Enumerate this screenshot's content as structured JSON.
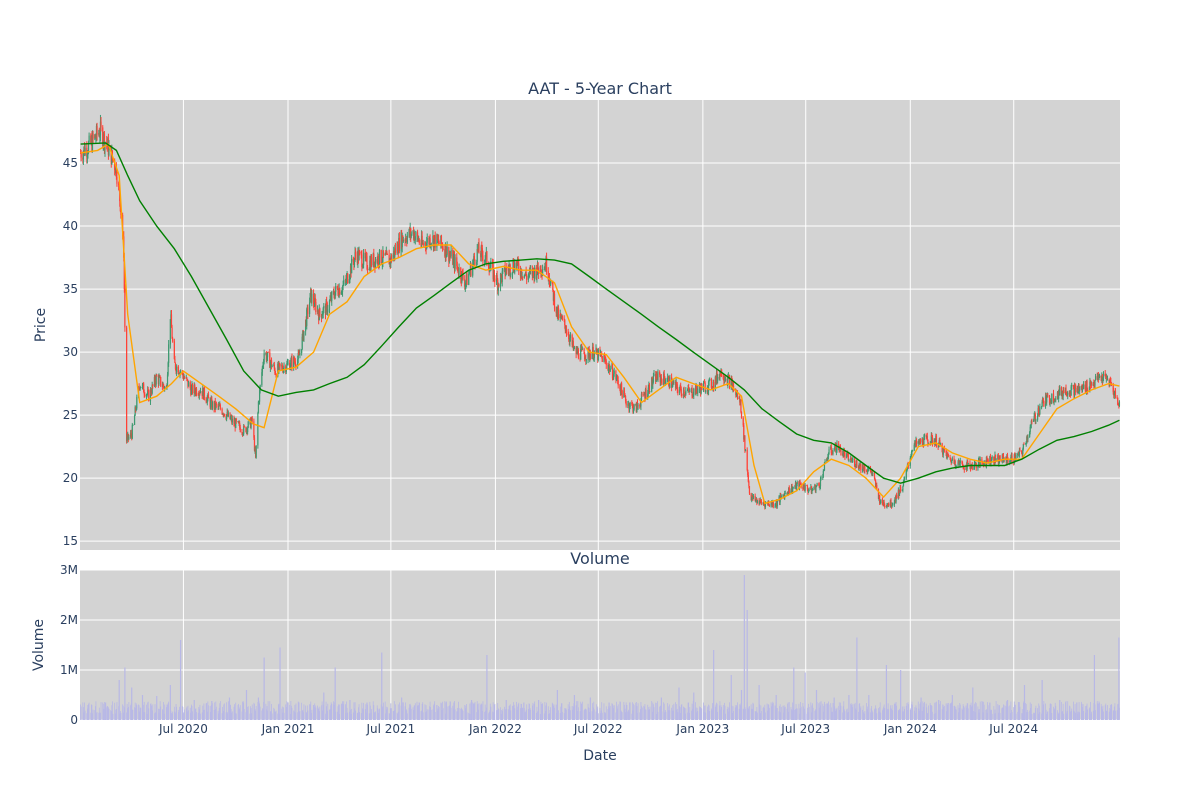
{
  "chart_data": [
    {
      "type": "candlestick",
      "title": "AAT - 5-Year Chart",
      "xlabel": "",
      "ylabel": "Price",
      "ylim": [
        14.3,
        50.0
      ],
      "y_ticks": [
        15,
        20,
        25,
        30,
        35,
        40,
        45
      ],
      "x_range": [
        "2020-01-01",
        "2025-01-04"
      ],
      "grid": true,
      "colors": {
        "plot_bg": "#d3d3d3",
        "grid": "#ffffff",
        "increasing": "#3d9970",
        "decreasing": "#ff4136",
        "ma_short": "#ffa500",
        "ma_long": "#008000"
      },
      "series": [
        {
          "kind": "close",
          "x": [
            "2020-01-02",
            "2020-01-20",
            "2020-02-05",
            "2020-02-20",
            "2020-03-05",
            "2020-03-12",
            "2020-03-18",
            "2020-03-23",
            "2020-04-01",
            "2020-04-15",
            "2020-05-01",
            "2020-05-15",
            "2020-06-01",
            "2020-06-08",
            "2020-06-15",
            "2020-06-26",
            "2020-07-15",
            "2020-08-01",
            "2020-08-20",
            "2020-09-05",
            "2020-09-25",
            "2020-10-15",
            "2020-10-30",
            "2020-11-05",
            "2020-11-10",
            "2020-11-20",
            "2020-12-10",
            "2020-12-31",
            "2021-01-20",
            "2021-02-10",
            "2021-02-25",
            "2021-03-10",
            "2021-03-25",
            "2021-04-10",
            "2021-05-01",
            "2021-05-20",
            "2021-06-10",
            "2021-06-30",
            "2021-07-20",
            "2021-08-10",
            "2021-08-25",
            "2021-09-10",
            "2021-09-30",
            "2021-10-20",
            "2021-11-10",
            "2021-11-20",
            "2021-12-01",
            "2021-12-15",
            "2022-01-05",
            "2022-01-20",
            "2022-02-05",
            "2022-02-25",
            "2022-03-15",
            "2022-04-01",
            "2022-04-20",
            "2022-05-05",
            "2022-05-20",
            "2022-06-10",
            "2022-06-20",
            "2022-07-10",
            "2022-08-01",
            "2022-08-20",
            "2022-09-05",
            "2022-09-25",
            "2022-10-10",
            "2022-10-30",
            "2022-11-20",
            "2022-12-10",
            "2022-12-31",
            "2023-01-20",
            "2023-02-01",
            "2023-02-20",
            "2023-03-08",
            "2023-03-15",
            "2023-03-25",
            "2023-04-15",
            "2023-05-10",
            "2023-05-30",
            "2023-06-20",
            "2023-07-10",
            "2023-07-25",
            "2023-08-10",
            "2023-08-25",
            "2023-09-15",
            "2023-10-05",
            "2023-10-25",
            "2023-11-10",
            "2023-11-30",
            "2023-12-20",
            "2024-01-05",
            "2024-01-25",
            "2024-02-15",
            "2024-03-10",
            "2024-04-05",
            "2024-04-20",
            "2024-05-20",
            "2024-06-10",
            "2024-06-30",
            "2024-07-15",
            "2024-07-30",
            "2024-08-20",
            "2024-09-10",
            "2024-10-01",
            "2024-10-25",
            "2024-11-15",
            "2024-12-01",
            "2024-12-15",
            "2025-01-03"
          ],
          "y": [
            45.8,
            46.5,
            47.6,
            46.2,
            44.5,
            41.8,
            38.0,
            23.0,
            23.5,
            27.5,
            26.5,
            28.0,
            27.0,
            33.0,
            29.0,
            28.5,
            27.0,
            27.0,
            25.8,
            25.5,
            24.5,
            23.8,
            24.5,
            21.5,
            26.0,
            30.0,
            28.5,
            29.0,
            29.5,
            34.5,
            33.0,
            33.5,
            34.8,
            35.3,
            37.8,
            37.0,
            37.5,
            37.3,
            39.0,
            39.5,
            38.5,
            39.0,
            38.5,
            37.2,
            35.5,
            36.8,
            38.0,
            37.5,
            35.5,
            36.5,
            37.0,
            36.0,
            36.5,
            37.0,
            33.0,
            32.0,
            30.0,
            29.8,
            30.0,
            29.5,
            28.0,
            26.0,
            25.5,
            27.0,
            28.0,
            27.8,
            27.0,
            26.8,
            27.2,
            27.5,
            28.5,
            27.5,
            26.0,
            23.0,
            18.5,
            18.0,
            18.0,
            19.0,
            19.5,
            19.0,
            19.5,
            22.0,
            22.5,
            21.5,
            21.0,
            20.5,
            18.0,
            18.0,
            19.5,
            22.5,
            23.0,
            23.0,
            21.5,
            21.0,
            21.0,
            21.5,
            21.5,
            21.5,
            22.0,
            24.0,
            26.0,
            26.5,
            27.0,
            27.0,
            27.5,
            28.0,
            27.8,
            25.8
          ]
        },
        {
          "kind": "moving_average",
          "x": [
            "2020-01-02",
            "2020-02-01",
            "2020-02-20",
            "2020-03-10",
            "2020-03-25",
            "2020-04-15",
            "2020-05-15",
            "2020-06-10",
            "2020-07-01",
            "2020-08-01",
            "2020-09-01",
            "2020-10-01",
            "2020-11-01",
            "2020-11-20",
            "2020-12-15",
            "2021-01-15",
            "2021-02-15",
            "2021-03-15",
            "2021-04-15",
            "2021-05-15",
            "2021-06-15",
            "2021-07-15",
            "2021-08-15",
            "2021-09-15",
            "2021-10-15",
            "2021-11-15",
            "2021-12-15",
            "2022-01-15",
            "2022-02-15",
            "2022-03-15",
            "2022-04-15",
            "2022-05-15",
            "2022-06-15",
            "2022-07-15",
            "2022-08-15",
            "2022-09-15",
            "2022-10-15",
            "2022-11-15",
            "2022-12-15",
            "2023-01-15",
            "2023-02-15",
            "2023-03-10",
            "2023-04-01",
            "2023-04-20",
            "2023-05-15",
            "2023-06-15",
            "2023-07-15",
            "2023-08-15",
            "2023-09-15",
            "2023-10-15",
            "2023-11-15",
            "2023-12-15",
            "2024-01-15",
            "2024-02-15",
            "2024-03-15",
            "2024-04-15",
            "2024-05-15",
            "2024-06-15",
            "2024-07-15",
            "2024-08-15",
            "2024-09-15",
            "2024-10-15",
            "2024-11-15",
            "2024-12-15",
            "2025-01-03"
          ],
          "y": [
            45.8,
            46.0,
            46.5,
            44.0,
            33.0,
            26.0,
            26.5,
            27.5,
            28.5,
            27.5,
            26.5,
            25.5,
            24.3,
            24.0,
            28.5,
            28.8,
            30.0,
            33.0,
            34.0,
            36.0,
            37.0,
            37.5,
            38.2,
            38.5,
            38.5,
            37.0,
            36.5,
            36.8,
            36.5,
            36.5,
            35.5,
            32.0,
            30.0,
            29.8,
            28.0,
            26.0,
            27.0,
            28.0,
            27.5,
            27.0,
            27.5,
            26.5,
            21.0,
            18.0,
            18.3,
            19.0,
            20.5,
            21.5,
            21.0,
            20.0,
            18.5,
            20.0,
            22.5,
            22.8,
            22.0,
            21.5,
            21.2,
            21.5,
            21.5,
            23.5,
            25.5,
            26.3,
            27.0,
            27.5,
            27.3
          ]
        },
        {
          "kind": "moving_average",
          "x": [
            "2020-01-02",
            "2020-02-15",
            "2020-03-05",
            "2020-03-25",
            "2020-04-15",
            "2020-05-15",
            "2020-06-15",
            "2020-07-15",
            "2020-08-15",
            "2020-09-15",
            "2020-10-15",
            "2020-11-15",
            "2020-12-15",
            "2021-01-15",
            "2021-02-15",
            "2021-03-15",
            "2021-04-15",
            "2021-05-15",
            "2021-06-15",
            "2021-07-15",
            "2021-08-15",
            "2021-09-15",
            "2021-10-15",
            "2021-11-15",
            "2021-12-15",
            "2022-01-15",
            "2022-02-15",
            "2022-03-15",
            "2022-04-15",
            "2022-05-15",
            "2022-06-15",
            "2022-07-15",
            "2022-08-15",
            "2022-09-15",
            "2022-10-15",
            "2022-11-15",
            "2022-12-15",
            "2023-01-15",
            "2023-02-15",
            "2023-03-15",
            "2023-04-15",
            "2023-05-15",
            "2023-06-15",
            "2023-07-15",
            "2023-08-15",
            "2023-09-15",
            "2023-10-15",
            "2023-11-15",
            "2023-12-15",
            "2024-01-15",
            "2024-02-15",
            "2024-03-15",
            "2024-04-15",
            "2024-05-15",
            "2024-06-15",
            "2024-07-15",
            "2024-08-15",
            "2024-09-15",
            "2024-10-15",
            "2024-11-15",
            "2024-12-15",
            "2025-01-03"
          ],
          "y": [
            46.5,
            46.6,
            46.0,
            44.0,
            42.0,
            40.0,
            38.2,
            36.0,
            33.5,
            31.0,
            28.5,
            27.0,
            26.5,
            26.8,
            27.0,
            27.5,
            28.0,
            29.0,
            30.5,
            32.0,
            33.5,
            34.5,
            35.5,
            36.5,
            37.0,
            37.2,
            37.3,
            37.4,
            37.3,
            37.0,
            36.0,
            35.0,
            34.0,
            33.0,
            32.0,
            31.0,
            30.0,
            29.0,
            28.0,
            27.0,
            25.5,
            24.5,
            23.5,
            23.0,
            22.8,
            22.0,
            21.0,
            20.0,
            19.6,
            20.0,
            20.5,
            20.8,
            21.0,
            21.0,
            21.0,
            21.5,
            22.3,
            23.0,
            23.3,
            23.7,
            24.2,
            24.6
          ]
        }
      ]
    },
    {
      "type": "bar",
      "title": "Volume",
      "xlabel": "Date",
      "ylabel": "Volume",
      "ylim": [
        0,
        3000000
      ],
      "y_ticks": [
        0,
        1000000,
        2000000,
        3000000
      ],
      "y_tick_labels": [
        "0",
        "1M",
        "2M",
        "3M"
      ],
      "x_ticks": [
        "2020-07-01",
        "2021-01-01",
        "2021-07-01",
        "2022-01-01",
        "2022-07-01",
        "2023-01-01",
        "2023-07-01",
        "2024-01-01",
        "2024-07-01"
      ],
      "x_tick_labels": [
        "Jul 2020",
        "Jan 2021",
        "Jul 2021",
        "Jan 2022",
        "Jul 2022",
        "Jan 2023",
        "Jul 2023",
        "Jan 2024",
        "Jul 2024"
      ],
      "grid": true,
      "colors": {
        "bar": "#b8b8e6"
      },
      "x": [
        "2020-01-15",
        "2020-02-15",
        "2020-03-10",
        "2020-03-20",
        "2020-04-01",
        "2020-04-20",
        "2020-05-15",
        "2020-06-08",
        "2020-06-26",
        "2020-07-20",
        "2020-08-20",
        "2020-09-20",
        "2020-10-20",
        "2020-11-10",
        "2020-11-20",
        "2020-12-18",
        "2021-01-20",
        "2021-02-15",
        "2021-03-05",
        "2021-03-25",
        "2021-04-20",
        "2021-05-20",
        "2021-06-15",
        "2021-07-20",
        "2021-08-20",
        "2021-09-20",
        "2021-10-20",
        "2021-11-20",
        "2021-12-17",
        "2022-01-20",
        "2022-02-20",
        "2022-03-18",
        "2022-04-20",
        "2022-05-20",
        "2022-06-17",
        "2022-07-20",
        "2022-08-20",
        "2022-09-16",
        "2022-10-20",
        "2022-11-20",
        "2022-12-16",
        "2023-01-20",
        "2023-02-20",
        "2023-03-10",
        "2023-03-15",
        "2023-03-20",
        "2023-04-10",
        "2023-05-10",
        "2023-06-10",
        "2023-06-30",
        "2023-07-20",
        "2023-08-20",
        "2023-09-15",
        "2023-09-29",
        "2023-10-20",
        "2023-11-20",
        "2023-12-15",
        "2024-01-20",
        "2024-02-20",
        "2024-03-15",
        "2024-04-20",
        "2024-05-20",
        "2024-06-20",
        "2024-07-20",
        "2024-08-20",
        "2024-09-20",
        "2024-10-20",
        "2024-11-20",
        "2024-12-20",
        "2025-01-02"
      ],
      "values": [
        300000,
        350000,
        800000,
        1050000,
        650000,
        500000,
        480000,
        700000,
        1600000,
        400000,
        380000,
        450000,
        600000,
        450000,
        1250000,
        1450000,
        350000,
        300000,
        550000,
        1050000,
        400000,
        350000,
        1350000,
        450000,
        350000,
        300000,
        350000,
        400000,
        1300000,
        400000,
        350000,
        400000,
        600000,
        500000,
        450000,
        350000,
        300000,
        250000,
        450000,
        650000,
        550000,
        1400000,
        900000,
        600000,
        2900000,
        2200000,
        700000,
        500000,
        1050000,
        950000,
        600000,
        450000,
        500000,
        1650000,
        500000,
        1100000,
        1000000,
        450000,
        400000,
        500000,
        650000,
        350000,
        400000,
        700000,
        800000,
        400000,
        350000,
        1300000,
        300000,
        1650000
      ]
    }
  ]
}
